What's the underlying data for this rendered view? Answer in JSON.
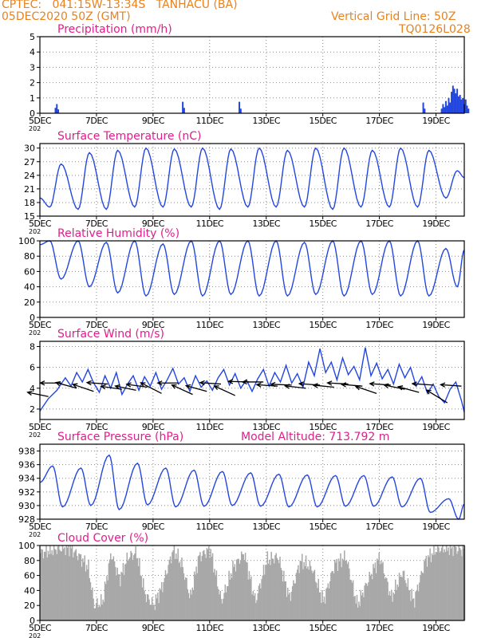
{
  "header": {
    "line1": "CPTEC:   041:15W-13:34S   TANHACU (BA)",
    "line2": "05DEC2020 50Z (GMT)",
    "right1": "Vertical Grid Line: 50Z",
    "right2": "TQ0126L028"
  },
  "colors": {
    "header": "#e8821e",
    "title": "#e01e8c",
    "series": "#2346e0",
    "cloud": "#a8a8a8",
    "grid": "#8a8a8a"
  },
  "x_axis": {
    "range_days": [
      0,
      15
    ],
    "tick_labels": [
      "5DEC",
      "7DEC",
      "9DEC",
      "11DEC",
      "13DEC",
      "15DEC",
      "17DEC",
      "19DEC"
    ],
    "tick_days": [
      0,
      2,
      4,
      6,
      8,
      10,
      12,
      14
    ],
    "year_fragment": "202"
  },
  "chart_data": [
    {
      "type": "bar",
      "title": "Precipitation (mm/h)",
      "ylim": [
        0,
        5
      ],
      "yticks": [
        0,
        1,
        2,
        3,
        4,
        5
      ],
      "bars": [
        {
          "x": 0.55,
          "y": 0.35
        },
        {
          "x": 0.6,
          "y": 0.6
        },
        {
          "x": 0.65,
          "y": 0.25
        },
        {
          "x": 5.05,
          "y": 0.75
        },
        {
          "x": 5.1,
          "y": 0.35
        },
        {
          "x": 7.05,
          "y": 0.75
        },
        {
          "x": 7.1,
          "y": 0.3
        },
        {
          "x": 13.55,
          "y": 0.7
        },
        {
          "x": 13.6,
          "y": 0.3
        },
        {
          "x": 14.2,
          "y": 0.3
        },
        {
          "x": 14.25,
          "y": 0.6
        },
        {
          "x": 14.3,
          "y": 0.4
        },
        {
          "x": 14.35,
          "y": 0.8
        },
        {
          "x": 14.4,
          "y": 0.5
        },
        {
          "x": 14.45,
          "y": 1.0
        },
        {
          "x": 14.5,
          "y": 0.7
        },
        {
          "x": 14.55,
          "y": 1.4
        },
        {
          "x": 14.6,
          "y": 1.8
        },
        {
          "x": 14.65,
          "y": 1.6
        },
        {
          "x": 14.7,
          "y": 1.3
        },
        {
          "x": 14.75,
          "y": 1.6
        },
        {
          "x": 14.8,
          "y": 1.1
        },
        {
          "x": 14.85,
          "y": 1.2
        },
        {
          "x": 14.9,
          "y": 0.9
        },
        {
          "x": 14.95,
          "y": 1.0
        },
        {
          "x": 15.0,
          "y": 0.6
        },
        {
          "x": 15.05,
          "y": 0.9
        },
        {
          "x": 15.1,
          "y": 0.5
        },
        {
          "x": 15.15,
          "y": 0.3
        }
      ]
    },
    {
      "type": "line",
      "title": "Surface Temperature (nC)",
      "ylim": [
        15,
        31
      ],
      "yticks": [
        15,
        18,
        21,
        24,
        27,
        30
      ],
      "series": [
        {
          "name": "",
          "pattern": {
            "maxima": [
              26.5,
              29.0,
              29.5,
              30.0,
              29.8,
              30.0,
              29.8,
              30.0,
              29.5,
              30.0,
              30.0,
              29.5,
              30.0,
              29.5,
              25.0
            ],
            "minima": [
              17.0,
              16.5,
              16.5,
              17.0,
              17.0,
              17.0,
              16.5,
              17.0,
              17.0,
              17.0,
              16.5,
              17.0,
              17.0,
              17.0,
              19.0
            ],
            "phase_max": 0.75,
            "phase_min": 0.35,
            "start": 19.0,
            "end": 23.5
          }
        }
      ]
    },
    {
      "type": "line",
      "title": "Relative Humidity (%)",
      "ylim": [
        0,
        100
      ],
      "yticks": [
        0,
        20,
        40,
        60,
        80,
        100
      ],
      "series": [
        {
          "name": "",
          "pattern": {
            "maxima": [
              100,
              100,
              98,
              100,
              96,
              100,
              100,
              100,
              100,
              98,
              100,
              100,
              100,
              100,
              90
            ],
            "minima": [
              50,
              40,
              32,
              28,
              30,
              28,
              30,
              28,
              28,
              30,
              28,
              30,
              28,
              28,
              40
            ],
            "phase_max": 0.35,
            "phase_min": 0.75,
            "start": 95,
            "end": 88
          }
        }
      ]
    },
    {
      "type": "line",
      "title": "Surface Wind (m/s)",
      "ylim": [
        1,
        8.5
      ],
      "yticks": [
        2,
        4,
        6,
        8
      ],
      "series": [
        {
          "name": "",
          "points": [
            [
              0,
              1.8
            ],
            [
              0.3,
              3.0
            ],
            [
              0.6,
              3.8
            ],
            [
              0.9,
              5.0
            ],
            [
              1.1,
              4.2
            ],
            [
              1.3,
              5.5
            ],
            [
              1.5,
              4.6
            ],
            [
              1.7,
              5.8
            ],
            [
              1.9,
              4.5
            ],
            [
              2.1,
              3.6
            ],
            [
              2.3,
              5.2
            ],
            [
              2.5,
              4.0
            ],
            [
              2.7,
              5.5
            ],
            [
              2.9,
              3.4
            ],
            [
              3.1,
              4.4
            ],
            [
              3.3,
              5.2
            ],
            [
              3.5,
              3.8
            ],
            [
              3.7,
              5.1
            ],
            [
              3.9,
              4.2
            ],
            [
              4.1,
              5.5
            ],
            [
              4.3,
              3.9
            ],
            [
              4.5,
              4.8
            ],
            [
              4.7,
              5.9
            ],
            [
              4.9,
              4.4
            ],
            [
              5.1,
              5.0
            ],
            [
              5.3,
              3.7
            ],
            [
              5.5,
              5.2
            ],
            [
              5.7,
              4.1
            ],
            [
              5.9,
              4.7
            ],
            [
              6.1,
              3.8
            ],
            [
              6.3,
              5.0
            ],
            [
              6.5,
              5.8
            ],
            [
              6.7,
              4.3
            ],
            [
              6.9,
              5.4
            ],
            [
              7.1,
              4.0
            ],
            [
              7.3,
              4.8
            ],
            [
              7.5,
              3.7
            ],
            [
              7.7,
              4.9
            ],
            [
              7.9,
              5.8
            ],
            [
              8.1,
              4.2
            ],
            [
              8.3,
              5.5
            ],
            [
              8.5,
              4.6
            ],
            [
              8.7,
              6.2
            ],
            [
              8.9,
              4.5
            ],
            [
              9.1,
              5.4
            ],
            [
              9.3,
              4.1
            ],
            [
              9.5,
              6.5
            ],
            [
              9.7,
              5.2
            ],
            [
              9.9,
              7.8
            ],
            [
              10.1,
              5.5
            ],
            [
              10.3,
              6.5
            ],
            [
              10.5,
              4.8
            ],
            [
              10.7,
              6.9
            ],
            [
              10.9,
              5.3
            ],
            [
              11.1,
              6.1
            ],
            [
              11.3,
              4.8
            ],
            [
              11.5,
              7.9
            ],
            [
              11.7,
              5.2
            ],
            [
              11.9,
              6.4
            ],
            [
              12.1,
              4.9
            ],
            [
              12.3,
              5.8
            ],
            [
              12.5,
              4.4
            ],
            [
              12.7,
              6.3
            ],
            [
              12.9,
              5.0
            ],
            [
              13.1,
              6.0
            ],
            [
              13.3,
              4.2
            ],
            [
              13.5,
              5.1
            ],
            [
              13.7,
              3.5
            ],
            [
              13.9,
              4.4
            ],
            [
              14.1,
              3.2
            ],
            [
              14.3,
              2.6
            ],
            [
              14.5,
              3.9
            ],
            [
              14.7,
              4.6
            ],
            [
              14.9,
              2.8
            ],
            [
              15.0,
              1.7
            ]
          ]
        }
      ],
      "barbs": [
        {
          "x": 0.3,
          "y": 3.2,
          "dir": 195
        },
        {
          "x": 0.75,
          "y": 4.5,
          "dir": 180
        },
        {
          "x": 1.3,
          "y": 4.0,
          "dir": 200
        },
        {
          "x": 1.9,
          "y": 3.7,
          "dir": 205
        },
        {
          "x": 2.4,
          "y": 4.4,
          "dir": 185
        },
        {
          "x": 2.9,
          "y": 3.9,
          "dir": 190
        },
        {
          "x": 3.4,
          "y": 3.8,
          "dir": 195
        },
        {
          "x": 3.8,
          "y": 4.1,
          "dir": 190
        },
        {
          "x": 4.3,
          "y": 3.5,
          "dir": 220
        },
        {
          "x": 4.9,
          "y": 4.5,
          "dir": 180
        },
        {
          "x": 5.4,
          "y": 3.4,
          "dir": 215
        },
        {
          "x": 5.9,
          "y": 3.7,
          "dir": 200
        },
        {
          "x": 6.4,
          "y": 4.4,
          "dir": 185
        },
        {
          "x": 6.9,
          "y": 3.3,
          "dir": 215
        },
        {
          "x": 7.4,
          "y": 4.6,
          "dir": 182
        },
        {
          "x": 7.9,
          "y": 4.6,
          "dir": 180
        },
        {
          "x": 8.4,
          "y": 4.2,
          "dir": 185
        },
        {
          "x": 8.9,
          "y": 4.3,
          "dir": 183
        },
        {
          "x": 9.4,
          "y": 4.0,
          "dir": 188
        },
        {
          "x": 9.9,
          "y": 4.3,
          "dir": 185
        },
        {
          "x": 10.4,
          "y": 4.1,
          "dir": 187
        },
        {
          "x": 10.9,
          "y": 4.4,
          "dir": 184
        },
        {
          "x": 11.4,
          "y": 4.2,
          "dir": 186
        },
        {
          "x": 11.9,
          "y": 3.5,
          "dir": 205
        },
        {
          "x": 12.4,
          "y": 4.3,
          "dir": 185
        },
        {
          "x": 12.9,
          "y": 3.9,
          "dir": 195
        },
        {
          "x": 13.4,
          "y": 3.6,
          "dir": 200
        },
        {
          "x": 13.9,
          "y": 4.3,
          "dir": 185
        },
        {
          "x": 14.4,
          "y": 2.6,
          "dir": 230
        },
        {
          "x": 14.9,
          "y": 4.2,
          "dir": 185
        }
      ]
    },
    {
      "type": "line",
      "title": "Surface Pressure (hPa)",
      "annotation": "Model Altitude: 713.792  m",
      "ylim": [
        928,
        939
      ],
      "yticks": [
        928,
        930,
        932,
        934,
        936,
        938
      ],
      "series": [
        {
          "name": "",
          "pattern": {
            "maxima": [
              935.8,
              935.5,
              937.4,
              936.2,
              935.5,
              935.2,
              935.0,
              934.8,
              934.6,
              934.5,
              934.4,
              934.4,
              934.2,
              934.0,
              931.0
            ],
            "minima": [
              929.8,
              930.0,
              929.4,
              930.1,
              929.8,
              929.9,
              930.0,
              929.9,
              929.8,
              929.8,
              929.9,
              929.9,
              929.8,
              929.0,
              928.0
            ],
            "phase_max": 0.45,
            "phase_min": 0.8,
            "start": 933.4,
            "end": 930.2
          }
        }
      ]
    },
    {
      "type": "bar",
      "title": "Cloud Cover (%)",
      "ylim": [
        0,
        100
      ],
      "yticks": [
        0,
        20,
        40,
        60,
        80,
        100
      ],
      "profile": [
        [
          0,
          90
        ],
        [
          0.5,
          95
        ],
        [
          1.0,
          98
        ],
        [
          1.4,
          85
        ],
        [
          1.7,
          70
        ],
        [
          1.9,
          20
        ],
        [
          2.2,
          25
        ],
        [
          2.5,
          90
        ],
        [
          2.8,
          55
        ],
        [
          3.1,
          85
        ],
        [
          3.4,
          90
        ],
        [
          3.7,
          35
        ],
        [
          4.0,
          20
        ],
        [
          4.3,
          45
        ],
        [
          4.7,
          95
        ],
        [
          5.0,
          75
        ],
        [
          5.3,
          30
        ],
        [
          5.6,
          85
        ],
        [
          6.0,
          95
        ],
        [
          6.4,
          25
        ],
        [
          6.8,
          70
        ],
        [
          7.2,
          90
        ],
        [
          7.6,
          25
        ],
        [
          8.0,
          80
        ],
        [
          8.4,
          85
        ],
        [
          8.8,
          30
        ],
        [
          9.2,
          80
        ],
        [
          9.6,
          70
        ],
        [
          10.0,
          25
        ],
        [
          10.4,
          75
        ],
        [
          10.8,
          85
        ],
        [
          11.2,
          20
        ],
        [
          11.6,
          55
        ],
        [
          12.0,
          85
        ],
        [
          12.4,
          30
        ],
        [
          12.8,
          65
        ],
        [
          13.2,
          25
        ],
        [
          13.6,
          80
        ],
        [
          14.0,
          95
        ],
        [
          14.4,
          97
        ],
        [
          14.8,
          95
        ],
        [
          15.0,
          95
        ]
      ]
    }
  ]
}
